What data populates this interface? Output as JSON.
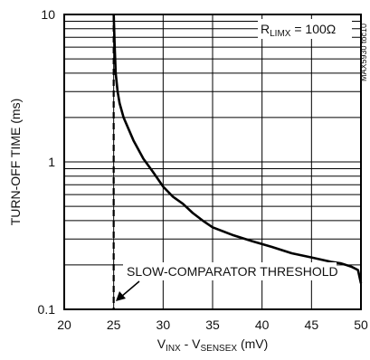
{
  "chart_data": {
    "type": "line",
    "xlabel": {
      "base1": "V",
      "sub1": "INX",
      "mid": " - V",
      "sub2": "SENSEX",
      "unit": " (mV)"
    },
    "ylabel": "TURN-OFF TIME (ms)",
    "xlim": [
      20,
      50
    ],
    "ylim": [
      0.1,
      10
    ],
    "yscale": "log",
    "x_ticks": [
      {
        "value": 20,
        "label": "20"
      },
      {
        "value": 25,
        "label": "25"
      },
      {
        "value": 30,
        "label": "30"
      },
      {
        "value": 35,
        "label": "35"
      },
      {
        "value": 40,
        "label": "40"
      },
      {
        "value": 45,
        "label": "45"
      },
      {
        "value": 50,
        "label": "50"
      }
    ],
    "y_ticks": [
      {
        "value": 0.1,
        "label": "0.1"
      },
      {
        "value": 1,
        "label": "1"
      },
      {
        "value": 10,
        "label": "10"
      }
    ],
    "grid": true,
    "series": [
      {
        "x": [
          25.0,
          25.1,
          25.2,
          25.4,
          25.6,
          26.0,
          27.0,
          28.0,
          29.0,
          30.0,
          31.0,
          32.0,
          33.0,
          34.0,
          35.0,
          37.0,
          39.0,
          41.0,
          43.0,
          45.0,
          47.0,
          48.0,
          49.0,
          49.7,
          50.0
        ],
        "y": [
          10.0,
          6.0,
          4.0,
          3.0,
          2.5,
          2.0,
          1.4,
          1.05,
          0.85,
          0.68,
          0.58,
          0.52,
          0.45,
          0.4,
          0.36,
          0.32,
          0.29,
          0.265,
          0.24,
          0.225,
          0.21,
          0.205,
          0.195,
          0.185,
          0.15
        ]
      }
    ],
    "threshold_line": {
      "x": 25,
      "style": "dashed"
    },
    "annotations": {
      "threshold_label": "SLOW-COMPARATOR THRESHOLD",
      "rlim": {
        "base": "R",
        "sub": "LIMX",
        "value": " = 100Ω"
      },
      "part_code": "MAX5930 toc10"
    }
  }
}
